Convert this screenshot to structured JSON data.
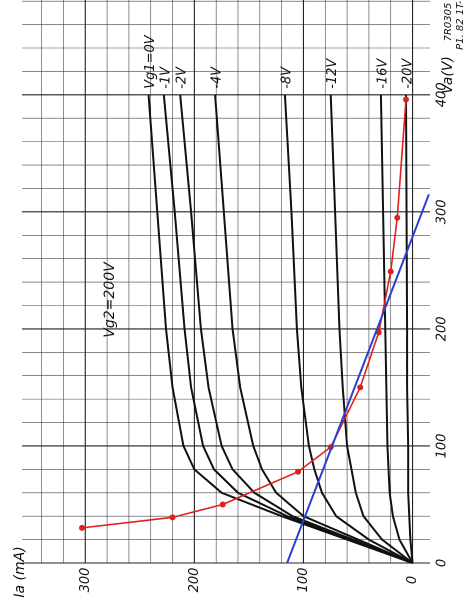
{
  "chart_data": {
    "type": "line",
    "title": "7R0305",
    "subtitle": "P1. 82 1T-1",
    "annotations": [
      "Vg2=200V"
    ],
    "xlabel": "Va(V)",
    "ylabel": "Ia (mA)",
    "xlim": [
      0,
      481
    ],
    "ylim": [
      -16,
      358
    ],
    "xticks": [
      0,
      100,
      200,
      300,
      400
    ],
    "yticks": [
      0,
      100,
      200,
      300
    ],
    "xminorticks": [
      20,
      40,
      60,
      80,
      120,
      140,
      160,
      180,
      220,
      240,
      260,
      280,
      320,
      340,
      360,
      380,
      420,
      440,
      460,
      480
    ],
    "yminorticks": [
      20,
      40,
      60,
      80,
      120,
      140,
      160,
      180,
      220,
      240,
      260,
      280,
      320,
      340
    ],
    "grid": true,
    "x": [
      0,
      20,
      40,
      60,
      80,
      100,
      150,
      200,
      300,
      400
    ],
    "series": [
      {
        "name": "Vg1=0V",
        "color": "#111111",
        "values": [
          0,
          60,
          120,
          175,
          200,
          210,
          220,
          226,
          234,
          242
        ]
      },
      {
        "name": "-1V",
        "color": "#111111",
        "values": [
          0,
          58,
          115,
          160,
          182,
          192,
          203,
          209,
          218,
          228
        ]
      },
      {
        "name": "-2V",
        "color": "#111111",
        "values": [
          0,
          55,
          110,
          145,
          165,
          175,
          187,
          194,
          203,
          213
        ]
      },
      {
        "name": "-4V",
        "color": "#111111",
        "values": [
          0,
          50,
          100,
          125,
          138,
          146,
          158,
          165,
          173,
          181
        ]
      },
      {
        "name": "-8V",
        "color": "#111111",
        "values": [
          0,
          40,
          70,
          83,
          90,
          95,
          102,
          106,
          111,
          117
        ]
      },
      {
        "name": "-12V",
        "color": "#111111",
        "values": [
          0,
          28,
          45,
          52,
          56,
          60,
          64,
          67,
          71,
          75
        ]
      },
      {
        "name": "-16V",
        "color": "#111111",
        "values": [
          0,
          12,
          18,
          21,
          22,
          23,
          24,
          25,
          27,
          29
        ]
      },
      {
        "name": "-20V",
        "color": "#111111",
        "values": [
          0,
          2,
          3,
          4,
          4,
          4,
          5,
          5,
          5.5,
          6
        ]
      },
      {
        "color": "#e0201c",
        "markers": true,
        "x": [
          30,
          39,
          50,
          78,
          99,
          150,
          197,
          249,
          295,
          396
        ],
        "values": [
          303,
          220,
          174,
          105,
          75,
          48,
          31,
          20,
          14,
          6
        ]
      },
      {
        "color": "#2a3fd0",
        "x": [
          0,
          315
        ],
        "values": [
          115,
          -15
        ]
      }
    ]
  }
}
